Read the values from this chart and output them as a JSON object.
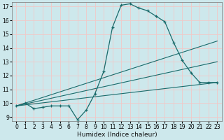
{
  "xlabel": "Humidex (Indice chaleur)",
  "bg_color": "#cde8ec",
  "grid_color": "#f0c8c8",
  "line_color": "#1a6b6b",
  "xlim": [
    -0.5,
    23.5
  ],
  "ylim": [
    8.7,
    17.3
  ],
  "yticks": [
    9,
    10,
    11,
    12,
    13,
    14,
    15,
    16,
    17
  ],
  "xticks": [
    0,
    1,
    2,
    3,
    4,
    5,
    6,
    7,
    8,
    9,
    10,
    11,
    12,
    13,
    14,
    15,
    16,
    17,
    18,
    19,
    20,
    21,
    22,
    23
  ],
  "main_line": {
    "x": [
      0,
      1,
      2,
      3,
      4,
      5,
      6,
      7,
      8,
      9,
      10,
      11,
      12,
      13,
      14,
      15,
      16,
      17,
      18,
      19,
      20,
      21,
      22,
      23
    ],
    "y": [
      9.8,
      10.0,
      9.6,
      9.7,
      9.8,
      9.8,
      9.8,
      8.8,
      9.5,
      10.7,
      12.3,
      15.5,
      17.1,
      17.2,
      16.9,
      16.7,
      16.3,
      15.9,
      14.4,
      13.1,
      12.2,
      11.5,
      11.5,
      11.5
    ]
  },
  "trend_lines": [
    {
      "x": [
        0,
        23
      ],
      "y": [
        9.8,
        11.5
      ]
    },
    {
      "x": [
        0,
        23
      ],
      "y": [
        9.8,
        13.0
      ]
    },
    {
      "x": [
        0,
        23
      ],
      "y": [
        9.8,
        14.5
      ]
    }
  ]
}
